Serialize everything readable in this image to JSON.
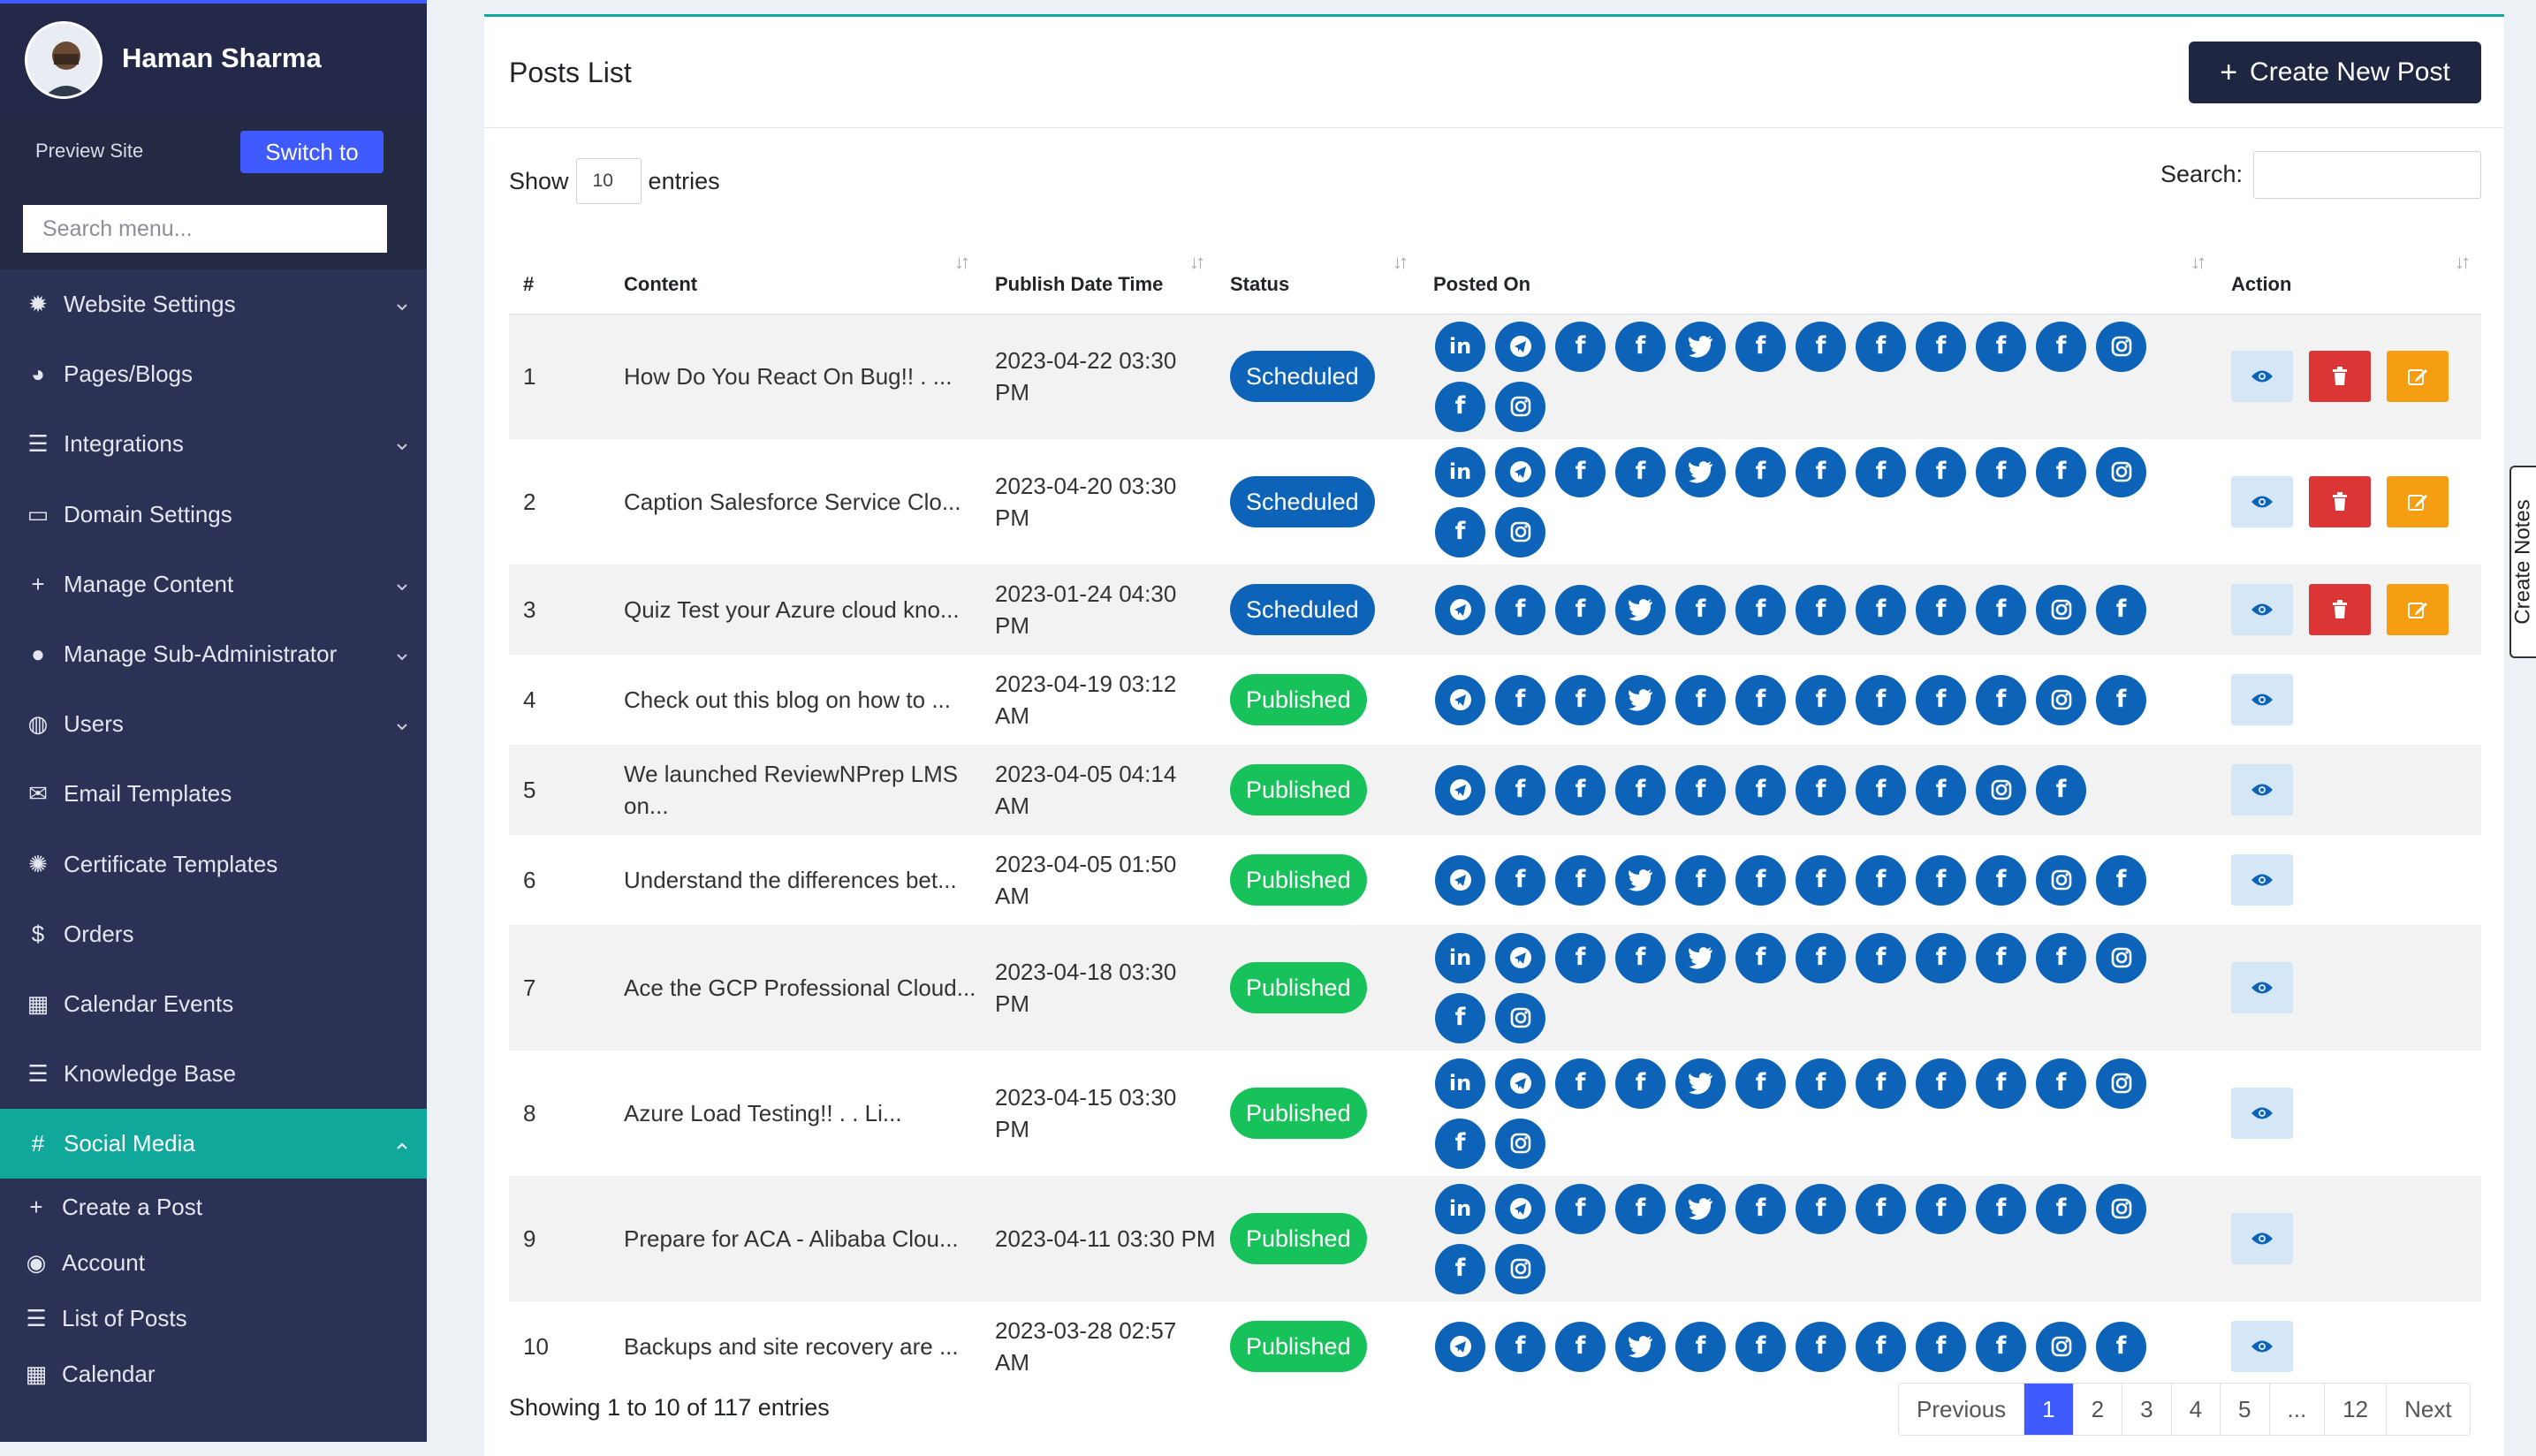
{
  "sidebar": {
    "user_name": "Haman Sharma",
    "preview_label": "Preview Site",
    "switch_label": "Switch to",
    "search_placeholder": "Search menu...",
    "items": [
      {
        "label": "Website Settings",
        "icon": "gear-icon",
        "has_submenu": true
      },
      {
        "label": "Pages/Blogs",
        "icon": "dashboard-icon",
        "has_submenu": false
      },
      {
        "label": "Integrations",
        "icon": "server-icon",
        "has_submenu": true
      },
      {
        "label": "Domain Settings",
        "icon": "window-icon",
        "has_submenu": false
      },
      {
        "label": "Manage Content",
        "icon": "plus-icon",
        "has_submenu": true
      },
      {
        "label": "Manage Sub-Administrator",
        "icon": "user-icon",
        "has_submenu": true
      },
      {
        "label": "Users",
        "icon": "user-plus-icon",
        "has_submenu": true
      },
      {
        "label": "Email Templates",
        "icon": "envelope-icon",
        "has_submenu": false
      },
      {
        "label": "Certificate Templates",
        "icon": "certificate-icon",
        "has_submenu": false
      },
      {
        "label": "Orders",
        "icon": "dollar-icon",
        "has_submenu": false
      },
      {
        "label": "Calendar Events",
        "icon": "calendar-icon",
        "has_submenu": false
      },
      {
        "label": "Knowledge Base",
        "icon": "list-icon",
        "has_submenu": false
      },
      {
        "label": "Social Media",
        "icon": "hashtag-icon",
        "has_submenu": true,
        "active": true
      }
    ],
    "subitems": [
      {
        "label": "Create a Post",
        "icon": "plus-icon"
      },
      {
        "label": "Account",
        "icon": "users-icon"
      },
      {
        "label": "List of Posts",
        "icon": "list-icon"
      },
      {
        "label": "Calendar",
        "icon": "calendar-icon"
      }
    ]
  },
  "main": {
    "title": "Posts List",
    "create_label": "Create New Post",
    "show_label": "Show",
    "entries_value": "10",
    "entries_label": "entries",
    "search_label": "Search:",
    "columns": [
      "#",
      "Content",
      "Publish Date Time",
      "Status",
      "Posted On",
      "Action"
    ],
    "rows": [
      {
        "num": "1",
        "content": "How Do You React On Bug!! . ...",
        "date": "2023-04-22 03:30 PM",
        "status": "Scheduled",
        "icons": [
          "in",
          "tg",
          "f",
          "f",
          "tw",
          "f",
          "f",
          "f",
          "f",
          "f",
          "f",
          "ig",
          "f",
          "ig"
        ],
        "actions": [
          "view",
          "delete",
          "edit"
        ]
      },
      {
        "num": "2",
        "content": "Caption Salesforce Service Clo...",
        "date": "2023-04-20 03:30 PM",
        "status": "Scheduled",
        "icons": [
          "in",
          "tg",
          "f",
          "f",
          "tw",
          "f",
          "f",
          "f",
          "f",
          "f",
          "f",
          "ig",
          "f",
          "ig"
        ],
        "actions": [
          "view",
          "delete",
          "edit"
        ]
      },
      {
        "num": "3",
        "content": "Quiz Test your Azure cloud kno...",
        "date": "2023-01-24 04:30 PM",
        "status": "Scheduled",
        "icons": [
          "tg",
          "f",
          "f",
          "tw",
          "f",
          "f",
          "f",
          "f",
          "f",
          "f",
          "ig",
          "f"
        ],
        "actions": [
          "view",
          "delete",
          "edit"
        ]
      },
      {
        "num": "4",
        "content": "Check out this blog on how to ...",
        "date": "2023-04-19 03:12 AM",
        "status": "Published",
        "icons": [
          "tg",
          "f",
          "f",
          "tw",
          "f",
          "f",
          "f",
          "f",
          "f",
          "f",
          "ig",
          "f"
        ],
        "actions": [
          "view"
        ]
      },
      {
        "num": "5",
        "content": "We launched ReviewNPrep LMS on...",
        "date": "2023-04-05 04:14 AM",
        "status": "Published",
        "icons": [
          "tg",
          "f",
          "f",
          "f",
          "f",
          "f",
          "f",
          "f",
          "f",
          "ig",
          "f"
        ],
        "actions": [
          "view"
        ]
      },
      {
        "num": "6",
        "content": "Understand the differences bet...",
        "date": "2023-04-05 01:50 AM",
        "status": "Published",
        "icons": [
          "tg",
          "f",
          "f",
          "tw",
          "f",
          "f",
          "f",
          "f",
          "f",
          "f",
          "ig",
          "f"
        ],
        "actions": [
          "view"
        ]
      },
      {
        "num": "7",
        "content": "Ace the GCP Professional Cloud...",
        "date": "2023-04-18 03:30 PM",
        "status": "Published",
        "icons": [
          "in",
          "tg",
          "f",
          "f",
          "tw",
          "f",
          "f",
          "f",
          "f",
          "f",
          "f",
          "ig",
          "f",
          "ig"
        ],
        "actions": [
          "view"
        ]
      },
      {
        "num": "8",
        "content": "Azure Load Testing!! . . Li...",
        "date": "2023-04-15 03:30 PM",
        "status": "Published",
        "icons": [
          "in",
          "tg",
          "f",
          "f",
          "tw",
          "f",
          "f",
          "f",
          "f",
          "f",
          "f",
          "ig",
          "f",
          "ig"
        ],
        "actions": [
          "view"
        ]
      },
      {
        "num": "9",
        "content": "Prepare for ACA - Alibaba Clou...",
        "date": "2023-04-11 03:30 PM",
        "status": "Published",
        "icons": [
          "in",
          "tg",
          "f",
          "f",
          "tw",
          "f",
          "f",
          "f",
          "f",
          "f",
          "f",
          "ig",
          "f",
          "ig"
        ],
        "actions": [
          "view"
        ]
      },
      {
        "num": "10",
        "content": "Backups and site recovery are ...",
        "date": "2023-03-28 02:57 AM",
        "status": "Published",
        "icons": [
          "tg",
          "f",
          "f",
          "tw",
          "f",
          "f",
          "f",
          "f",
          "f",
          "f",
          "ig",
          "f"
        ],
        "actions": [
          "view"
        ]
      }
    ],
    "footer_info": "Showing 1 to 10 of 117 entries",
    "pagination": [
      "Previous",
      "1",
      "2",
      "3",
      "4",
      "5",
      "...",
      "12",
      "Next"
    ],
    "current_page": "1"
  },
  "notes_tab": "Create Notes",
  "colors": {
    "sidebar": "#2c3256",
    "accent": "#10a89b",
    "primary": "#3f5bff",
    "social": "#0c63b7",
    "published": "#18c25a",
    "delete": "#dc3535",
    "edit": "#f59e12"
  }
}
